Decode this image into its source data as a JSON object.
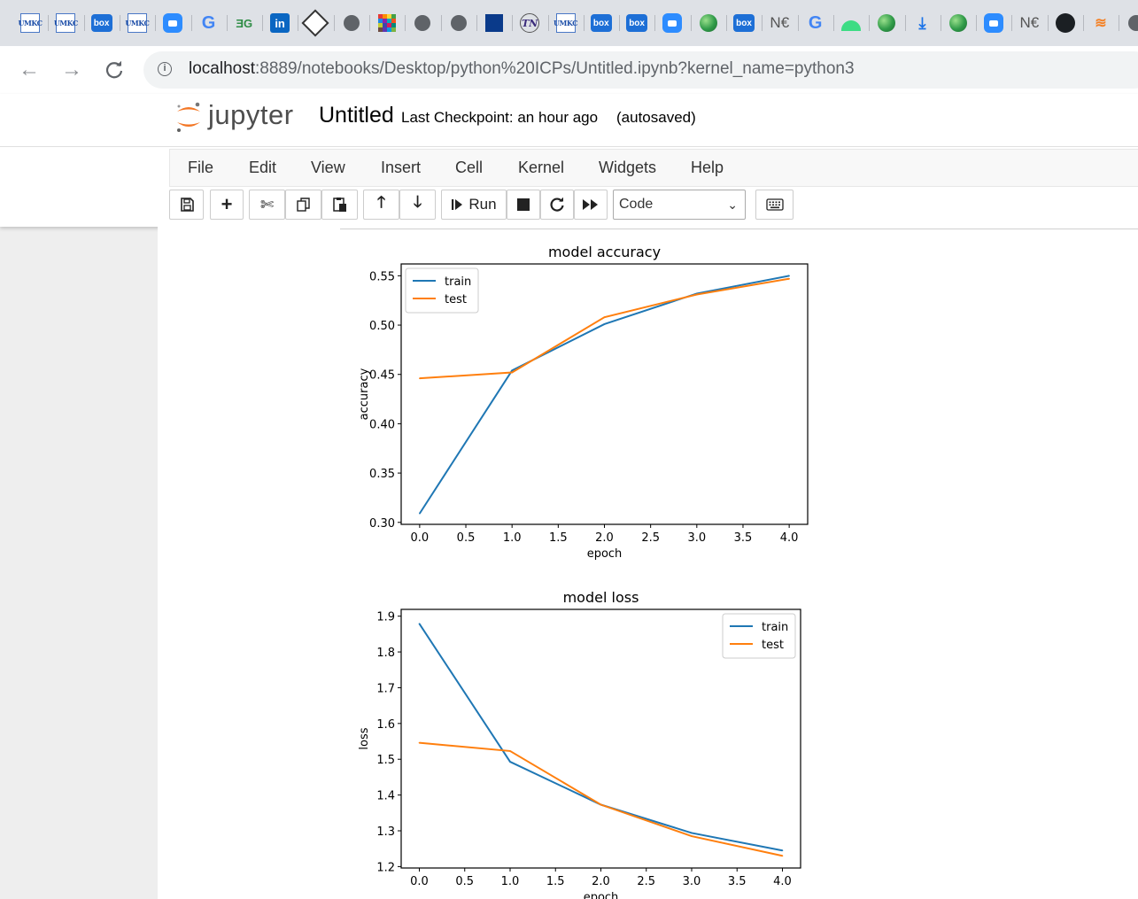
{
  "browser": {
    "tabs": [
      {
        "icon": "umkc-icon",
        "text": "UMKC"
      },
      {
        "icon": "umkc-icon",
        "text": "UMKC"
      },
      {
        "icon": "box-icon",
        "text": "box"
      },
      {
        "icon": "umkc-icon",
        "text": "UMKC"
      },
      {
        "icon": "zoom-icon",
        "text": ""
      },
      {
        "icon": "google-icon",
        "text": "G"
      },
      {
        "icon": "geeksforgeeks-icon",
        "text": "ƎG"
      },
      {
        "icon": "linkedin-icon",
        "text": "in"
      },
      {
        "icon": "diamond-icon",
        "text": ""
      },
      {
        "icon": "globe-icon",
        "text": ""
      },
      {
        "icon": "color-grid-icon",
        "text": ""
      },
      {
        "icon": "globe-icon",
        "text": ""
      },
      {
        "icon": "globe-icon",
        "text": ""
      },
      {
        "icon": "swoosh-icon",
        "text": ""
      },
      {
        "icon": "tn-icon",
        "text": "TN"
      },
      {
        "icon": "umkc-icon",
        "text": "UMKC"
      },
      {
        "icon": "box-icon",
        "text": "box"
      },
      {
        "icon": "box-icon",
        "text": "box"
      },
      {
        "icon": "zoom-icon",
        "text": ""
      },
      {
        "icon": "recycle-icon",
        "text": ""
      },
      {
        "icon": "box-icon",
        "text": "box"
      },
      {
        "icon": "netflix-icon",
        "text": "N€"
      },
      {
        "icon": "google-icon",
        "text": "G"
      },
      {
        "icon": "android-icon",
        "text": ""
      },
      {
        "icon": "recycle-icon",
        "text": ""
      },
      {
        "icon": "download-icon",
        "text": "⤓"
      },
      {
        "icon": "recycle-icon",
        "text": ""
      },
      {
        "icon": "zoom-icon",
        "text": ""
      },
      {
        "icon": "netflix-icon",
        "text": "N€"
      },
      {
        "icon": "github-icon",
        "text": ""
      },
      {
        "icon": "stackoverflow-icon",
        "text": "≋"
      },
      {
        "icon": "globe-icon",
        "text": ""
      }
    ],
    "nav": {
      "back": "←",
      "forward": "→",
      "reload": "C"
    },
    "url_host": "localhost",
    "url_rest": ":8889/notebooks/Desktop/python%20ICPs/Untitled.ipynb?kernel_name=python3"
  },
  "jupyter": {
    "wordmark": "jupyter",
    "notebook_title": "Untitled",
    "checkpoint": "Last Checkpoint: an hour ago",
    "autosave": "(autosaved)",
    "menu": [
      "File",
      "Edit",
      "View",
      "Insert",
      "Cell",
      "Kernel",
      "Widgets",
      "Help"
    ],
    "toolbar": {
      "run_label": "Run",
      "cell_type": "Code"
    }
  },
  "colors": {
    "train": "#1f77b4",
    "test": "#ff7f0e"
  },
  "chart_data": [
    {
      "type": "line",
      "title": "model accuracy",
      "xlabel": "epoch",
      "ylabel": "accuracy",
      "x": [
        0,
        1,
        2,
        3,
        4
      ],
      "xlim": [
        -0.2,
        4.2
      ],
      "ylim": [
        0.298,
        0.562
      ],
      "xticks": [
        "0.0",
        "0.5",
        "1.0",
        "1.5",
        "2.0",
        "2.5",
        "3.0",
        "3.5",
        "4.0"
      ],
      "yticks": [
        "0.30",
        "0.35",
        "0.40",
        "0.45",
        "0.50",
        "0.55"
      ],
      "legend": "upper left",
      "grid": false,
      "series": [
        {
          "name": "train",
          "values": [
            0.309,
            0.454,
            0.501,
            0.532,
            0.55
          ]
        },
        {
          "name": "test",
          "values": [
            0.446,
            0.452,
            0.508,
            0.531,
            0.547
          ]
        }
      ]
    },
    {
      "type": "line",
      "title": "model loss",
      "xlabel": "epoch",
      "ylabel": "loss",
      "x": [
        0,
        1,
        2,
        3,
        4
      ],
      "xlim": [
        -0.2,
        4.2
      ],
      "ylim": [
        1.196,
        1.919
      ],
      "xticks": [
        "0.0",
        "0.5",
        "1.0",
        "1.5",
        "2.0",
        "2.5",
        "3.0",
        "3.5",
        "4.0"
      ],
      "yticks": [
        "1.2",
        "1.3",
        "1.4",
        "1.5",
        "1.6",
        "1.7",
        "1.8",
        "1.9"
      ],
      "legend": "upper right",
      "grid": false,
      "series": [
        {
          "name": "train",
          "values": [
            1.879,
            1.493,
            1.373,
            1.294,
            1.245
          ]
        },
        {
          "name": "test",
          "values": [
            1.546,
            1.523,
            1.373,
            1.285,
            1.23
          ]
        }
      ]
    }
  ]
}
